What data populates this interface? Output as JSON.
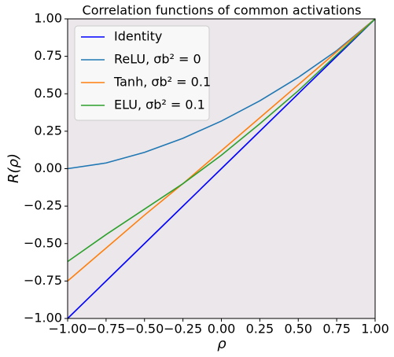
{
  "chart_data": {
    "type": "line",
    "title": "Correlation functions of common activations",
    "x_label": "ρ",
    "y_label": "R(ρ)",
    "x": [
      -1,
      -0.75,
      -0.5,
      -0.25,
      0,
      0.25,
      0.5,
      0.75,
      1
    ],
    "series": [
      {
        "name": "Identity",
        "color": "#0000ff",
        "values": [
          -1,
          -0.75,
          -0.5,
          -0.25,
          0,
          0.25,
          0.5,
          0.75,
          1
        ]
      },
      {
        "name": "ReLU, σb² = 0",
        "color": "#1f77b4",
        "values": [
          0,
          0.038,
          0.109,
          0.203,
          0.318,
          0.453,
          0.609,
          0.788,
          1
        ]
      },
      {
        "name": "Tanh, σb² = 0.1",
        "color": "#ff7f0e",
        "values": [
          -0.75,
          -0.53,
          -0.31,
          -0.1,
          0.12,
          0.34,
          0.56,
          0.78,
          1
        ]
      },
      {
        "name": "ELU, σb² = 0.1",
        "color": "#2ca02c",
        "values": [
          -0.62,
          -0.44,
          -0.27,
          -0.1,
          0.09,
          0.3,
          0.52,
          0.76,
          1
        ]
      }
    ],
    "xlim": [
      -1,
      1
    ],
    "ylim": [
      -1,
      1
    ],
    "xticks": [
      {
        "value": -1,
        "label": "−1.00"
      },
      {
        "value": -0.75,
        "label": "−0.75"
      },
      {
        "value": -0.5,
        "label": "−0.50"
      },
      {
        "value": -0.25,
        "label": "−0.25"
      },
      {
        "value": 0,
        "label": "0.00"
      },
      {
        "value": 0.25,
        "label": "0.25"
      },
      {
        "value": 0.5,
        "label": "0.50"
      },
      {
        "value": 0.75,
        "label": "0.75"
      },
      {
        "value": 1,
        "label": "1.00"
      }
    ],
    "yticks": [
      {
        "value": -1,
        "label": "−1.00"
      },
      {
        "value": -0.75,
        "label": "−0.75"
      },
      {
        "value": -0.5,
        "label": "−0.50"
      },
      {
        "value": -0.25,
        "label": "−0.25"
      },
      {
        "value": 0,
        "label": "0.00"
      },
      {
        "value": 0.25,
        "label": "0.25"
      },
      {
        "value": 0.5,
        "label": "0.50"
      },
      {
        "value": 0.75,
        "label": "0.75"
      },
      {
        "value": 1,
        "label": "1.00"
      }
    ],
    "grid": false,
    "legend": "upper-left",
    "background": "#ebe7ea"
  }
}
